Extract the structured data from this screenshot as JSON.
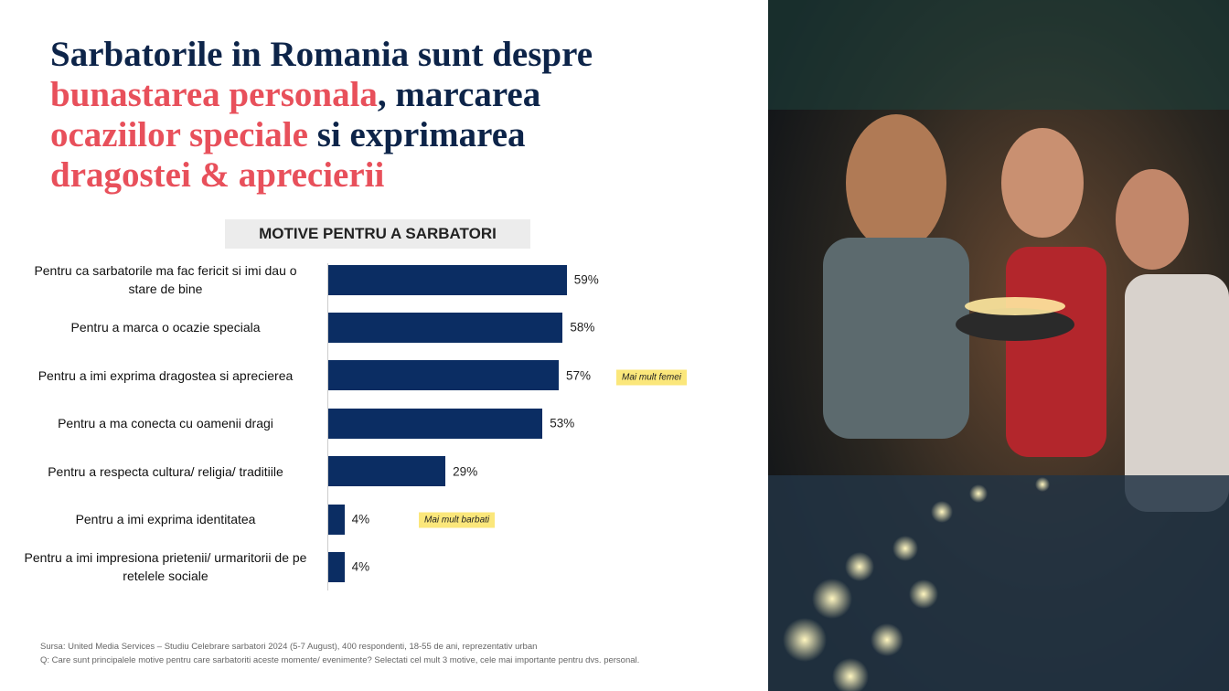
{
  "header": {
    "title_parts": [
      {
        "text": "Sarbatorile in Romania sunt despre",
        "accent": false
      },
      {
        "text": "bunastarea personala",
        "accent": true
      },
      {
        "text": ", marcarea",
        "accent": false
      },
      {
        "text": "ocaziilor speciale",
        "accent": true
      },
      {
        "text": " si exprimarea",
        "accent": false
      },
      {
        "text": "dragostei & aprecierii",
        "accent": true
      }
    ]
  },
  "chart_data": {
    "type": "bar",
    "orientation": "horizontal",
    "title": "MOTIVE PENTRU A SARBATORI",
    "color": "#0b2d63",
    "categories": [
      "Pentru ca sarbatorile ma fac fericit si imi dau o stare de bine",
      "Pentru a marca o ocazie speciala",
      "Pentru a imi exprima dragostea si aprecierea",
      "Pentru a ma conecta cu oamenii dragi",
      "Pentru a respecta cultura/ religia/ traditiile",
      "Pentru a imi exprima identitatea",
      "Pentru a imi impresiona prietenii/ urmaritorii de pe retelele sociale"
    ],
    "values": [
      59,
      58,
      57,
      53,
      29,
      4,
      4
    ],
    "value_labels": [
      "59%",
      "58%",
      "57%",
      "53%",
      "29%",
      "4%",
      "4%"
    ],
    "annotations": [
      "Mai mult femei",
      "Mai mult barbati"
    ]
  },
  "footer": {
    "source": "Sursa: United Media Services – Studiu Celebrare sarbatori 2024 (5-7 August), 400 respondenti,  18-55 de ani, reprezentativ urban",
    "question": "Q:  Care sunt principalele motive pentru care sarbatoriti aceste momente/ evenimente? Selectati cel mult 3 motive, cele mai importante pentru dvs. personal."
  }
}
